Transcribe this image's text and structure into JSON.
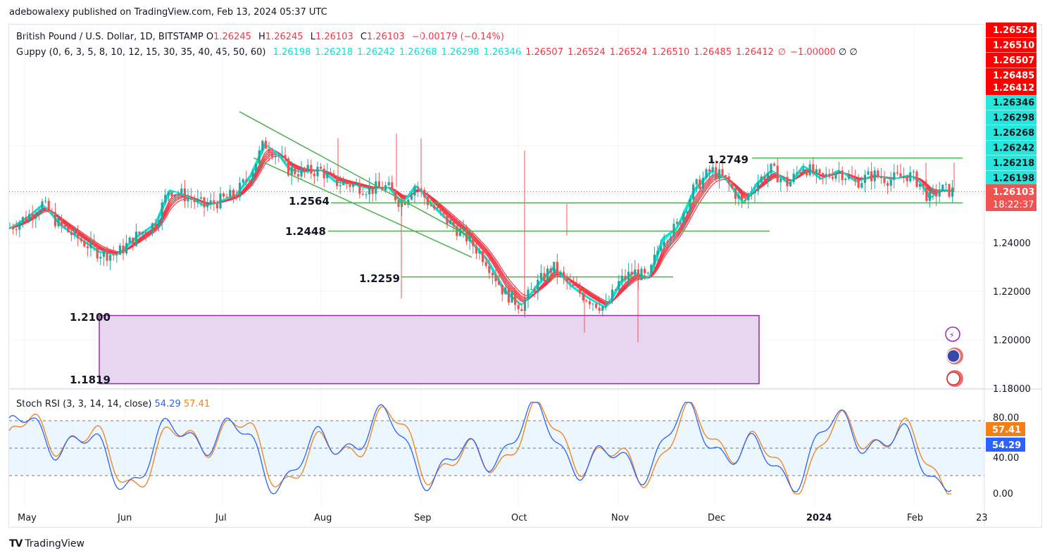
{
  "header": {
    "published": "adebowalexy published on TradingView.com, Feb 13, 2024 05:37 UTC"
  },
  "legend": {
    "symbol": "British Pound / U.S. Dollar, 1D, BITSTAMP",
    "o_label": "O",
    "o": "1.26245",
    "h_label": "H",
    "h": "1.26245",
    "l_label": "L",
    "l": "1.26103",
    "c_label": "C",
    "c": "1.26103",
    "change": "−0.00179 (−0.14%)",
    "guppy_label": "Guppy (0, 6, 3, 5, 8, 10, 12, 15, 30, 35, 40, 45, 50, 60)",
    "guppy_fast": [
      "1.26198",
      "1.26218",
      "1.26242",
      "1.26268",
      "1.26298",
      "1.26346"
    ],
    "guppy_slow": [
      "1.26507",
      "1.26524",
      "1.26524",
      "1.26510",
      "1.26485",
      "1.26412",
      "∅",
      "−1.00000"
    ],
    "guppy_tail": "∅  ∅",
    "stoch_label": "Stoch RSI (3, 3, 14, 14, close)",
    "stoch_k": "54.29",
    "stoch_d": "57.41"
  },
  "price_axis": {
    "badges_red": [
      "1.26524",
      "1.26510",
      "1.26507",
      "1.26485",
      "1.26412"
    ],
    "badges_cyan": [
      "1.26346",
      "1.26298",
      "1.26268",
      "1.26242",
      "1.26218",
      "1.26198"
    ],
    "last_price": "1.26103",
    "countdown": "18:22:37",
    "ticks": [
      "1.24000",
      "1.22000",
      "1.20000",
      "1.18000"
    ]
  },
  "stoch_axis": {
    "ticks": [
      "80.00",
      "40.00",
      "0.00"
    ],
    "badge_d": "57.41",
    "badge_k": "54.29"
  },
  "time_axis": [
    "May",
    "Jun",
    "Jul",
    "Aug",
    "Sep",
    "Oct",
    "Nov",
    "Dec",
    "2024",
    "Feb",
    "23"
  ],
  "annotations": {
    "lvl_2749": "1.2749",
    "lvl_2564": "1.2564",
    "lvl_2448": "1.2448",
    "lvl_2259": "1.2259",
    "lvl_2100": "1.2100",
    "lvl_1819": "1.1819"
  },
  "footer": {
    "brand": "TradingView"
  },
  "colors": {
    "up": "#26a69a",
    "down": "#ef5350",
    "fast": "#00e5d9",
    "slow": "#f23645",
    "trend": "#4caf50",
    "zone": "#9c27b0",
    "stoch_k": "#2962ff",
    "stoch_d": "#f57f17"
  },
  "chart_data": {
    "type": "line",
    "title": "British Pound / U.S. Dollar, 1D, BITSTAMP",
    "x": [
      "May",
      "Jun",
      "Jul",
      "Aug",
      "Sep",
      "Oct",
      "Nov",
      "Dec",
      "2024",
      "Feb"
    ],
    "series": [
      {
        "name": "close",
        "values": [
          1.245,
          1.245,
          1.268,
          1.275,
          1.262,
          1.22,
          1.23,
          1.256,
          1.268,
          1.264
        ]
      }
    ],
    "levels": [
      1.2749,
      1.2564,
      1.2448,
      1.2259,
      1.21,
      1.1819
    ],
    "ylim": [
      1.175,
      1.3
    ],
    "grid": true
  }
}
